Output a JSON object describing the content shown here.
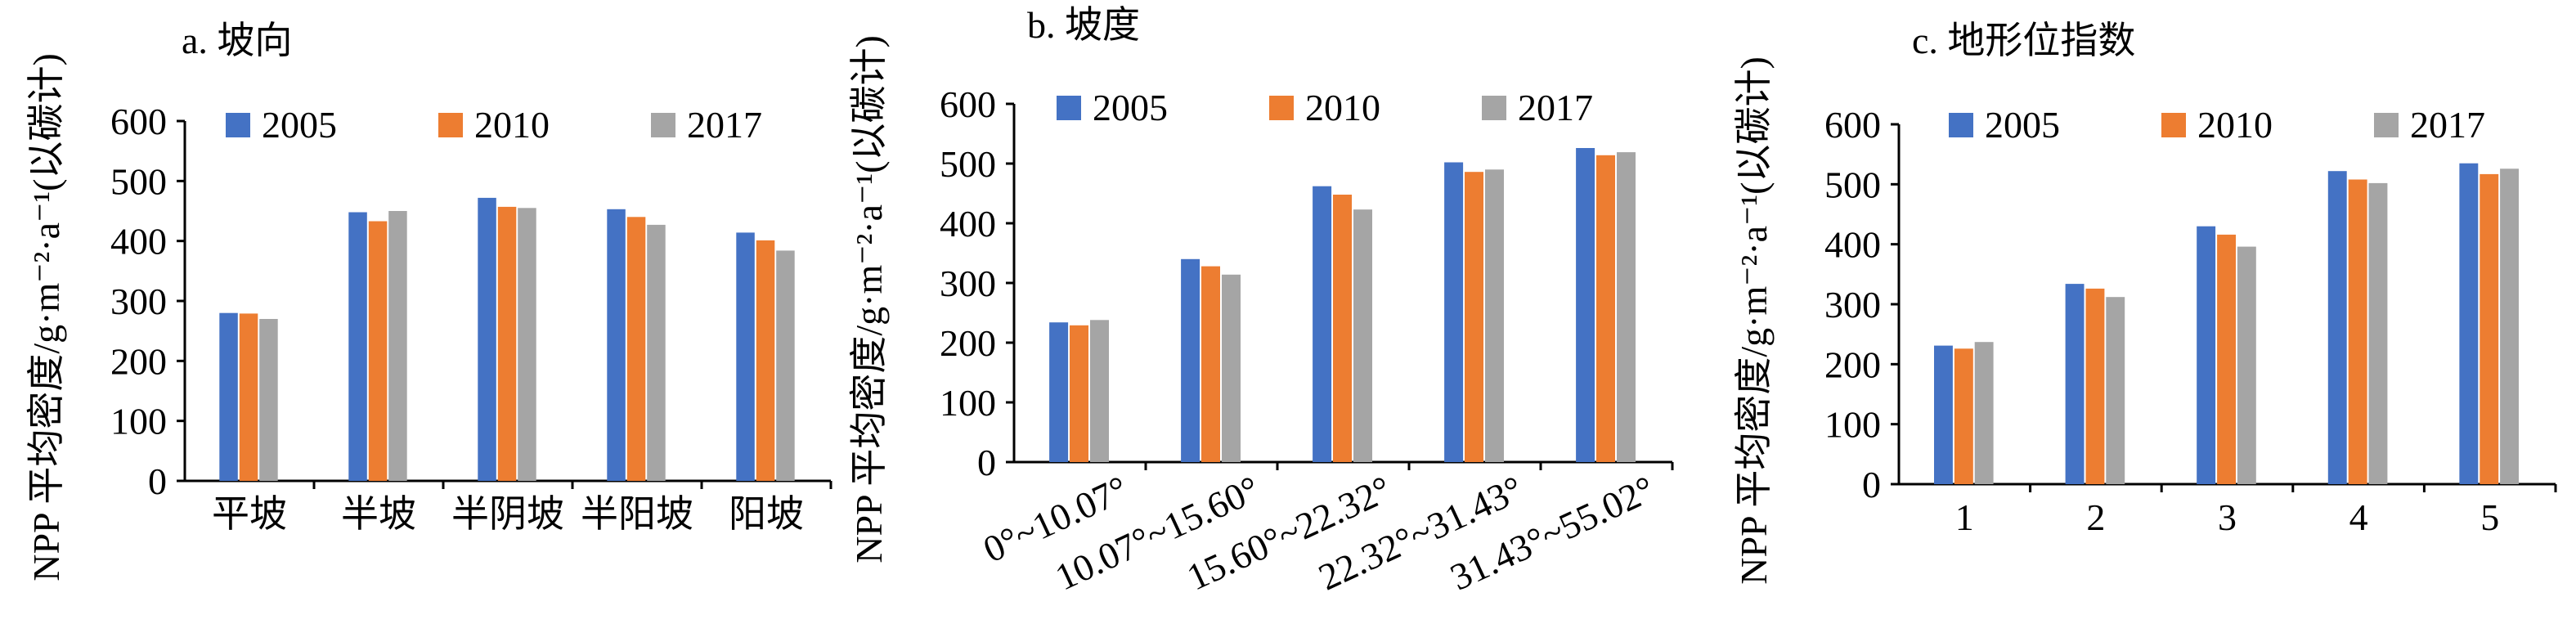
{
  "colors": {
    "series": [
      "#4472C4",
      "#ED7D31",
      "#A5A5A5"
    ],
    "axis": "#000000",
    "text": "#000000"
  },
  "chart_data": [
    {
      "type": "bar",
      "title": "a. 坡向",
      "xlabel": "",
      "ylabel": "NPP 平均密度/g·m⁻²·a⁻¹(以碳计)",
      "ylim": [
        0,
        600
      ],
      "yticks": [
        "0",
        "100",
        "200",
        "300",
        "400",
        "500",
        "600"
      ],
      "grid": false,
      "legend_placement": "top",
      "categories": [
        "平坡",
        "半坡",
        "半阴坡",
        "半阳坡",
        "阳坡"
      ],
      "series": [
        {
          "name": "2005",
          "values": [
            280,
            448,
            472,
            453,
            414
          ]
        },
        {
          "name": "2010",
          "values": [
            279,
            433,
            457,
            440,
            401
          ]
        },
        {
          "name": "2017",
          "values": [
            270,
            450,
            455,
            427,
            384
          ]
        }
      ]
    },
    {
      "type": "bar",
      "title": "b. 坡度",
      "xlabel": "",
      "ylabel": "NPP 平均密度/g·m⁻²·a⁻¹(以碳计)",
      "ylim": [
        0,
        600
      ],
      "yticks": [
        "0",
        "100",
        "200",
        "300",
        "400",
        "500",
        "600"
      ],
      "grid": false,
      "legend_placement": "top",
      "categories": [
        "0°~10.07°",
        "10.07°~15.60°",
        "15.60°~22.32°",
        "22.32°~31.43°",
        "31.43°~55.02°"
      ],
      "series": [
        {
          "name": "2005",
          "values": [
            234,
            340,
            462,
            502,
            526
          ]
        },
        {
          "name": "2010",
          "values": [
            229,
            328,
            448,
            486,
            514
          ]
        },
        {
          "name": "2017",
          "values": [
            238,
            314,
            423,
            490,
            519
          ]
        }
      ]
    },
    {
      "type": "bar",
      "title": "c. 地形位指数",
      "xlabel": "",
      "ylabel": "NPP 平均密度/g·m⁻²·a⁻¹(以碳计)",
      "ylim": [
        0,
        600
      ],
      "yticks": [
        "0",
        "100",
        "200",
        "300",
        "400",
        "500",
        "600"
      ],
      "grid": false,
      "legend_placement": "top",
      "categories": [
        "1",
        "2",
        "3",
        "4",
        "5"
      ],
      "series": [
        {
          "name": "2005",
          "values": [
            231,
            334,
            430,
            522,
            535
          ]
        },
        {
          "name": "2010",
          "values": [
            226,
            326,
            416,
            508,
            517
          ]
        },
        {
          "name": "2017",
          "values": [
            237,
            312,
            396,
            502,
            526
          ]
        }
      ]
    }
  ]
}
